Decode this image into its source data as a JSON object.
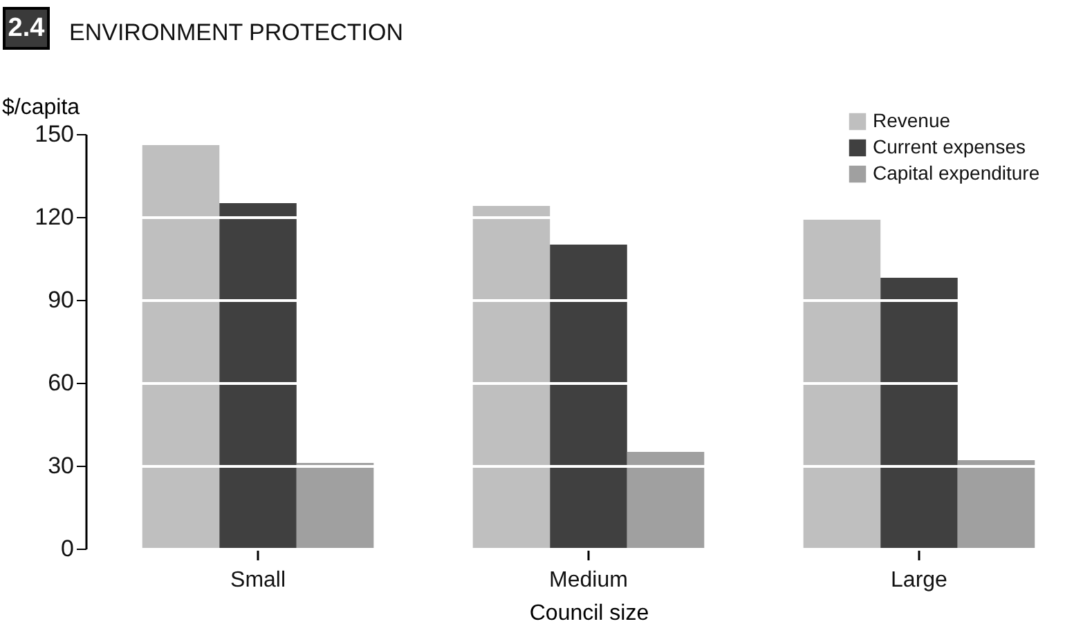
{
  "chart_data": {
    "type": "bar",
    "title": "ENVIRONMENT PROTECTION",
    "annotations": [
      "2.4"
    ],
    "xlabel": "Council size",
    "ylabel": "$/capita",
    "categories": [
      "Small",
      "Medium",
      "Large"
    ],
    "series": [
      {
        "name": "Revenue",
        "color": "#bfbfbf",
        "values": [
          146,
          124,
          119
        ]
      },
      {
        "name": "Current expenses",
        "color": "#404040",
        "values": [
          125,
          110,
          98
        ]
      },
      {
        "name": "Capital expenditure",
        "color": "#a0a0a0",
        "values": [
          31,
          35,
          32
        ]
      }
    ],
    "ylim": [
      0,
      150
    ],
    "yticks": [
      0,
      30,
      60,
      90,
      120,
      150
    ],
    "grid": "y",
    "legend": "top right"
  }
}
